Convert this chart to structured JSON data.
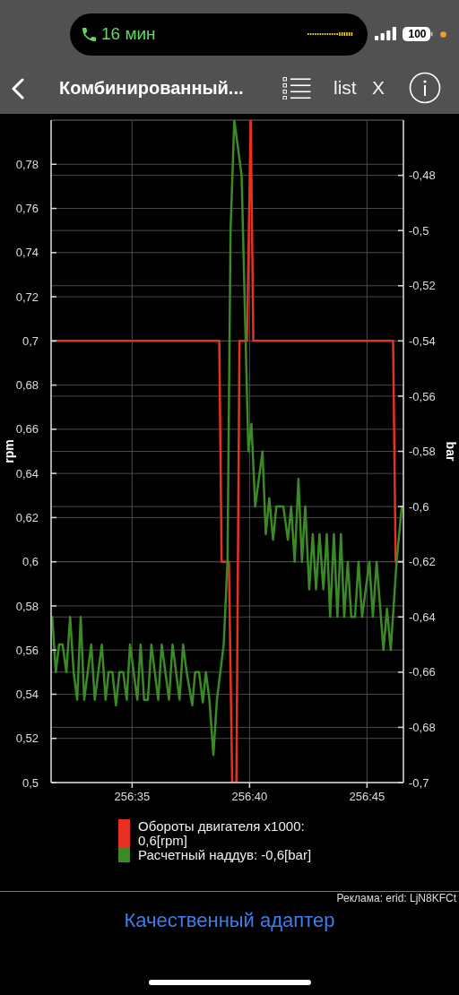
{
  "chart_data": {
    "type": "line",
    "title": "Комбинированный...",
    "ylabel": "rpm",
    "y2label": "bar",
    "annotations": [
      "16 мин",
      "100",
      "list",
      "X",
      "Реклама: erid: LjN8KFCt",
      "Качественный адаптер"
    ],
    "xlim": [
      15391.55,
      15406.55
    ],
    "xticks": [
      {
        "value": 15395,
        "label": "256:35"
      },
      {
        "value": 15400,
        "label": "256:40"
      },
      {
        "value": 15405,
        "label": "256:45"
      }
    ],
    "ylim": [
      0.5,
      0.8
    ],
    "yticks": [
      {
        "value": 0.5,
        "label": "0,5"
      },
      {
        "value": 0.52,
        "label": "0,52"
      },
      {
        "value": 0.54,
        "label": "0,54"
      },
      {
        "value": 0.56,
        "label": "0,56"
      },
      {
        "value": 0.58,
        "label": "0,58"
      },
      {
        "value": 0.6,
        "label": "0,6"
      },
      {
        "value": 0.62,
        "label": "0,62"
      },
      {
        "value": 0.64,
        "label": "0,64"
      },
      {
        "value": 0.66,
        "label": "0,66"
      },
      {
        "value": 0.68,
        "label": "0,68"
      },
      {
        "value": 0.7,
        "label": "0,7"
      },
      {
        "value": 0.72,
        "label": "0,72"
      },
      {
        "value": 0.74,
        "label": "0,74"
      },
      {
        "value": 0.76,
        "label": "0,76"
      },
      {
        "value": 0.78,
        "label": "0,78"
      }
    ],
    "y2lim": [
      -0.7,
      -0.46
    ],
    "y2ticks": [
      {
        "value": -0.7,
        "label": "-0,7"
      },
      {
        "value": -0.68,
        "label": "-0,68"
      },
      {
        "value": -0.66,
        "label": "-0,66"
      },
      {
        "value": -0.64,
        "label": "-0,64"
      },
      {
        "value": -0.62,
        "label": "-0,62"
      },
      {
        "value": -0.6,
        "label": "-0,6"
      },
      {
        "value": -0.58,
        "label": "-0,58"
      },
      {
        "value": -0.56,
        "label": "-0,56"
      },
      {
        "value": -0.54,
        "label": "-0,54"
      },
      {
        "value": -0.52,
        "label": "-0,52"
      },
      {
        "value": -0.5,
        "label": "-0,5"
      },
      {
        "value": -0.48,
        "label": "-0,48"
      }
    ],
    "grid": true,
    "legend": "bottom",
    "series": [
      {
        "name": "Обороты двигателя x1000: 0,6[rpm]",
        "color": "#e8301f",
        "x": [
          15391.55,
          15398.71,
          15398.81,
          15399.12,
          15399.26,
          15399.44,
          15399.57,
          15399.89,
          15400.05,
          15400.16,
          15406.11,
          15406.22,
          15406.55
        ],
        "values": [
          0.7,
          0.7,
          0.6,
          0.6,
          0.5,
          0.5,
          0.7,
          0.7,
          0.8,
          0.7,
          0.7,
          0.6,
          0.6
        ]
      },
      {
        "name": "Расчетный наддув: -0,6[bar]",
        "color": "#3a8a25",
        "axis": "y2",
        "x": [
          15391.6,
          15391.75,
          15391.89,
          15392.04,
          15392.2,
          15392.36,
          15392.51,
          15392.66,
          15392.81,
          15392.96,
          15393.26,
          15393.41,
          15393.71,
          15393.87,
          15394.0,
          15394.16,
          15394.31,
          15394.46,
          15394.62,
          15394.77,
          15394.91,
          15395.22,
          15395.36,
          15395.51,
          15395.67,
          15395.82,
          15396.11,
          15396.26,
          15396.57,
          15396.72,
          15397.02,
          15397.17,
          15397.32,
          15397.56,
          15397.68,
          15397.85,
          15398.01,
          15398.14,
          15398.29,
          15398.46,
          15398.61,
          15398.9,
          15399.06,
          15399.19,
          15399.35,
          15399.66,
          15399.95,
          15400.08,
          15400.24,
          15400.55,
          15400.69,
          15400.84,
          15401.0,
          15401.14,
          15401.44,
          15401.63,
          15401.77,
          15401.92,
          15402.08,
          15402.23,
          15402.37,
          15402.54,
          15402.69,
          15402.83,
          15402.98,
          15403.14,
          15403.29,
          15403.43,
          15403.59,
          15403.74,
          15403.89,
          15404.03,
          15404.18,
          15404.33,
          15404.49,
          15404.64,
          15404.79,
          15405.1,
          15405.25,
          15405.41,
          15405.7,
          15405.85,
          15406.01,
          15406.26,
          15406.48
        ],
        "values": [
          -0.64,
          -0.66,
          -0.65,
          -0.65,
          -0.66,
          -0.64,
          -0.66,
          -0.67,
          -0.64,
          -0.67,
          -0.65,
          -0.67,
          -0.65,
          -0.67,
          -0.66,
          -0.66,
          -0.672,
          -0.66,
          -0.66,
          -0.67,
          -0.65,
          -0.67,
          -0.65,
          -0.67,
          -0.67,
          -0.65,
          -0.67,
          -0.65,
          -0.67,
          -0.65,
          -0.67,
          -0.65,
          -0.66,
          -0.672,
          -0.66,
          -0.66,
          -0.671,
          -0.66,
          -0.67,
          -0.69,
          -0.67,
          -0.65,
          -0.62,
          -0.5,
          -0.46,
          -0.48,
          -0.58,
          -0.57,
          -0.6,
          -0.58,
          -0.61,
          -0.597,
          -0.612,
          -0.6,
          -0.6,
          -0.612,
          -0.6,
          -0.62,
          -0.59,
          -0.62,
          -0.6,
          -0.63,
          -0.61,
          -0.63,
          -0.61,
          -0.63,
          -0.61,
          -0.64,
          -0.61,
          -0.64,
          -0.61,
          -0.64,
          -0.62,
          -0.64,
          -0.64,
          -0.62,
          -0.64,
          -0.62,
          -0.64,
          -0.62,
          -0.652,
          -0.637,
          -0.652,
          -0.62,
          -0.6
        ]
      }
    ]
  }
}
